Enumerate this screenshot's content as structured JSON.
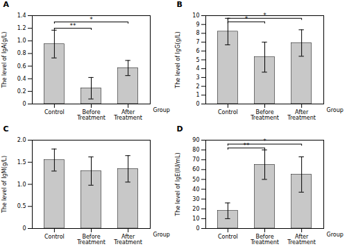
{
  "chart_data": [
    {
      "type": "bar",
      "title": "A",
      "xlabel": "Group",
      "ylabel": "The level of IgA(g/L)",
      "categories": [
        "Control",
        "Before Treatment",
        "After Treatment"
      ],
      "values": [
        0.95,
        0.25,
        0.57
      ],
      "errors": [
        0.22,
        0.17,
        0.12
      ],
      "color": "#c8c8c8",
      "ylim": [
        0,
        1.4
      ],
      "yticks": [
        0,
        0.2,
        0.4,
        0.6,
        0.8,
        {
          "value": 1,
          "label": "1.0"
        },
        1.2,
        1.4
      ],
      "grid": false,
      "annotations": [
        {
          "text": "**",
          "x1": "Control",
          "x2": "Before Treatment",
          "y": 1.2
        },
        {
          "text": "*",
          "x1": "Control",
          "x2": "After Treatment",
          "y": 1.3
        }
      ]
    },
    {
      "type": "bar",
      "title": "B",
      "xlabel": "Group",
      "ylabel": "The level of IgG(g/L)",
      "categories": [
        "Control",
        "Before Treatment",
        "After Treatment"
      ],
      "values": [
        8.2,
        5.3,
        6.9
      ],
      "errors": [
        1.5,
        1.7,
        1.5
      ],
      "color": "#c8c8c8",
      "ylim": [
        0,
        10
      ],
      "yticks": [
        0,
        1,
        2,
        3,
        4,
        5,
        6,
        7,
        8,
        9,
        10
      ],
      "grid": false,
      "annotations": [
        {
          "text": "*",
          "x1": "Control",
          "x2": "Before Treatment",
          "y": 9.3
        },
        {
          "text": "*",
          "x1": "Control",
          "x2": "After Treatment",
          "y": 9.7
        }
      ]
    },
    {
      "type": "bar",
      "title": "C",
      "xlabel": "Group",
      "ylabel": "The level of IgM(g/L)",
      "categories": [
        "Control",
        "Before Treatment",
        "After Treatment"
      ],
      "values": [
        1.55,
        1.3,
        1.35
      ],
      "errors": [
        0.25,
        0.32,
        0.3
      ],
      "color": "#c8c8c8",
      "ylim": [
        0,
        2.0
      ],
      "yticks": [
        0,
        0.5,
        {
          "value": 1,
          "label": "1.0"
        },
        1.5,
        {
          "value": 2,
          "label": "2.0"
        }
      ],
      "grid": false,
      "annotations": []
    },
    {
      "type": "bar",
      "title": "D",
      "xlabel": "Group",
      "ylabel": "The level of IgE(IU/mL)",
      "categories": [
        "Control",
        "Before Treatment",
        "After Treatment"
      ],
      "values": [
        18,
        65,
        55
      ],
      "errors": [
        8,
        15,
        18
      ],
      "color": "#c8c8c8",
      "ylim": [
        0,
        90
      ],
      "yticks": [
        0,
        10,
        20,
        30,
        40,
        50,
        60,
        70,
        80,
        90
      ],
      "grid": false,
      "annotations": [
        {
          "text": "**",
          "x1": "Control",
          "x2": "Before Treatment",
          "y": 82
        },
        {
          "text": "*",
          "x1": "Control",
          "x2": "After Treatment",
          "y": 86
        }
      ]
    }
  ]
}
